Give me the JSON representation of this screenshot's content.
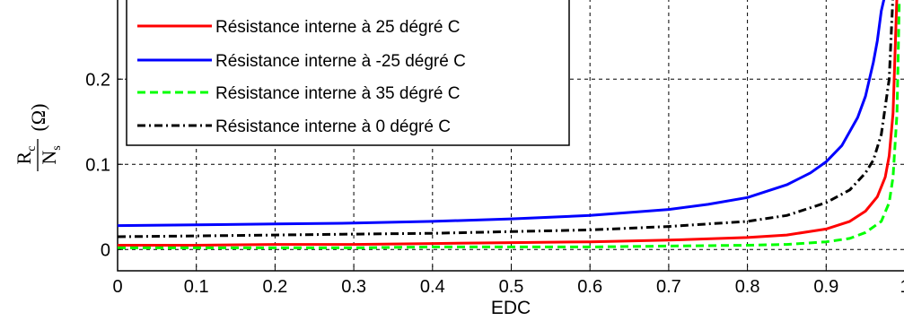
{
  "chart_data": {
    "type": "line",
    "xlabel": "EDC",
    "ylabel": {
      "numerator": "R",
      "numerator_sub": "c",
      "denominator": "N",
      "denominator_sub": "s",
      "unit": "(Ω)"
    },
    "xlim": [
      0,
      1
    ],
    "ylim": [
      -0.025,
      0.295
    ],
    "x_ticks": [
      "0",
      "0.1",
      "0.2",
      "0.3",
      "0.4",
      "0.5",
      "0.6",
      "0.7",
      "0.8",
      "0.9",
      "1"
    ],
    "y_ticks": [
      "0",
      "0.1",
      "0.2"
    ],
    "grid": true,
    "legend_position": "top-left",
    "series": [
      {
        "name": "Résistance interne à 25 dégré C",
        "color": "#ff0000",
        "style": "solid",
        "x": [
          0,
          0.1,
          0.2,
          0.3,
          0.4,
          0.5,
          0.6,
          0.7,
          0.8,
          0.85,
          0.9,
          0.93,
          0.95,
          0.965,
          0.975,
          0.98,
          0.985,
          0.99
        ],
        "y": [
          0.005,
          0.005,
          0.006,
          0.006,
          0.007,
          0.008,
          0.009,
          0.011,
          0.014,
          0.017,
          0.024,
          0.033,
          0.045,
          0.062,
          0.085,
          0.11,
          0.16,
          0.3
        ]
      },
      {
        "name": "Résistance interne à -25 dégré C",
        "color": "#0000ff",
        "style": "solid",
        "x": [
          0,
          0.1,
          0.2,
          0.3,
          0.4,
          0.5,
          0.6,
          0.7,
          0.75,
          0.8,
          0.85,
          0.88,
          0.9,
          0.92,
          0.94,
          0.95,
          0.96,
          0.965,
          0.97,
          0.975
        ],
        "y": [
          0.028,
          0.029,
          0.03,
          0.031,
          0.033,
          0.036,
          0.04,
          0.047,
          0.053,
          0.061,
          0.076,
          0.09,
          0.103,
          0.122,
          0.155,
          0.18,
          0.22,
          0.245,
          0.28,
          0.3
        ]
      },
      {
        "name": "Résistance interne à 35 dégré C",
        "color": "#00ff00",
        "style": "dashed",
        "x": [
          0,
          0.1,
          0.2,
          0.3,
          0.4,
          0.5,
          0.6,
          0.7,
          0.8,
          0.85,
          0.9,
          0.93,
          0.95,
          0.97,
          0.98,
          0.985,
          0.99,
          0.993
        ],
        "y": [
          0.002,
          0.002,
          0.002,
          0.002,
          0.003,
          0.003,
          0.003,
          0.004,
          0.005,
          0.006,
          0.009,
          0.013,
          0.02,
          0.033,
          0.055,
          0.085,
          0.16,
          0.3
        ]
      },
      {
        "name": "Résistance interne à 0 dégré C",
        "color": "#000000",
        "style": "dashdot",
        "x": [
          0,
          0.1,
          0.2,
          0.3,
          0.4,
          0.5,
          0.6,
          0.7,
          0.8,
          0.85,
          0.9,
          0.93,
          0.95,
          0.96,
          0.97,
          0.98,
          0.985
        ],
        "y": [
          0.015,
          0.016,
          0.017,
          0.018,
          0.019,
          0.021,
          0.023,
          0.027,
          0.033,
          0.04,
          0.055,
          0.07,
          0.09,
          0.105,
          0.135,
          0.2,
          0.3
        ]
      }
    ]
  }
}
